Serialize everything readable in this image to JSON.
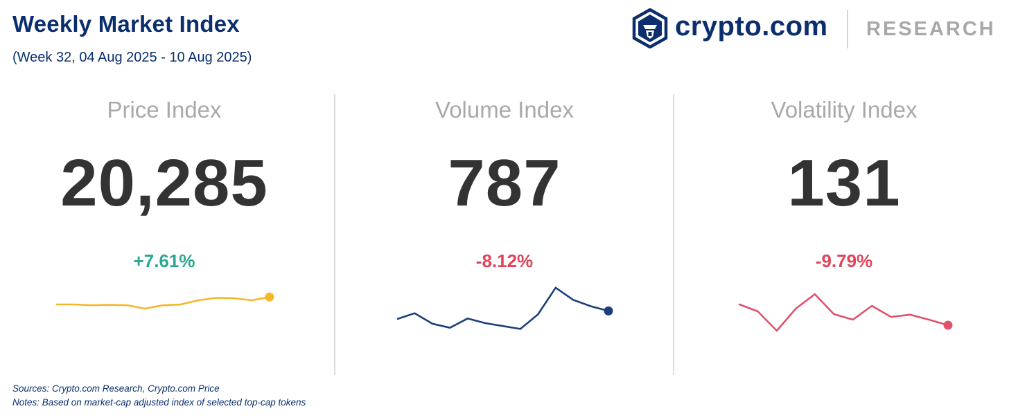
{
  "header": {
    "title": "Weekly Market Index",
    "subtitle": "(Week 32, 04 Aug 2025 - 10 Aug 2025)"
  },
  "logo": {
    "wordmark": "crypto.com",
    "research": "RESEARCH",
    "icon": "crypto-com-lion-shield-icon",
    "color": "#0a2e6e"
  },
  "footer": {
    "sources": "Sources: Crypto.com Research,  Crypto.com Price",
    "notes": "Notes: Based on market-cap adjusted index of selected top-cap tokens"
  },
  "chart_data": [
    {
      "type": "line",
      "title": "Price Index",
      "value": "20,285",
      "change": "+7.61%",
      "color": "#f5b82a",
      "change_color": "#2aa892",
      "values": [
        40,
        40,
        38,
        39,
        38,
        30,
        38,
        40,
        50,
        56,
        55,
        50,
        58
      ],
      "axes_shown": false,
      "grid": false
    },
    {
      "type": "line",
      "title": "Volume Index",
      "value": "787",
      "change": "-8.12%",
      "color": "#1c3f7a",
      "change_color": "#e0445a",
      "values": [
        32,
        42,
        24,
        17,
        33,
        25,
        20,
        15,
        40,
        86,
        65,
        54,
        46
      ],
      "axes_shown": false,
      "grid": false
    },
    {
      "type": "line",
      "title": "Volatility Index",
      "value": "131",
      "change": "-9.79%",
      "color": "#e0526a",
      "change_color": "#e0445a",
      "values": [
        58,
        45,
        10,
        50,
        76,
        40,
        30,
        55,
        35,
        39,
        30,
        20
      ],
      "axes_shown": false,
      "grid": false
    }
  ]
}
